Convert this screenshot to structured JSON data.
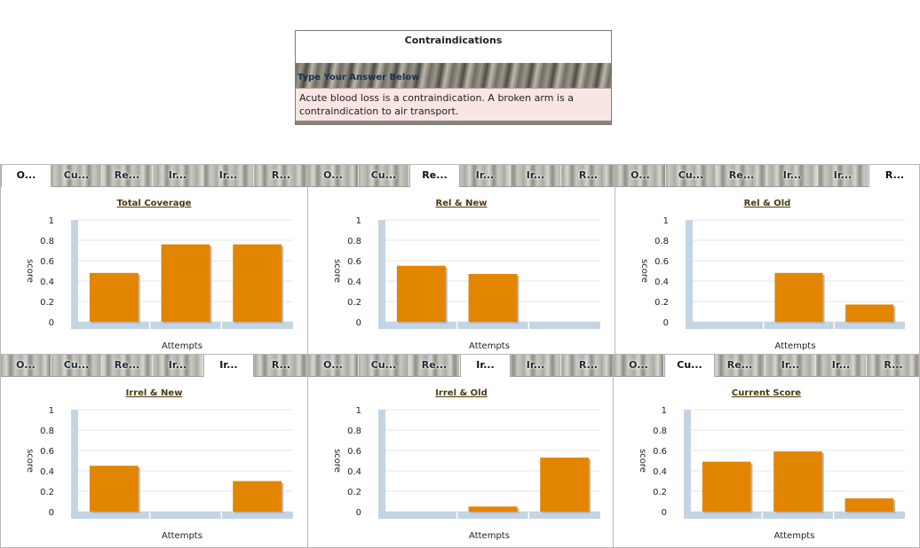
{
  "question": {
    "title": "Contraindications",
    "prompt": "Type Your Answer Below",
    "answer": "Acute blood loss is a contraindication. A broken arm is a contraindication to air transport."
  },
  "tab_labels": [
    "O...",
    "Cu...",
    "Re...",
    "Ir...",
    "Ir...",
    "R..."
  ],
  "colors": {
    "bar": "#e28500",
    "axis": "#c4d4e3",
    "grid": "#e6e6e6"
  },
  "panels": [
    {
      "active_tab": 0,
      "title": "Total Coverage"
    },
    {
      "active_tab": 2,
      "title": "Rel & New"
    },
    {
      "active_tab": 5,
      "title": "Rel & Old"
    },
    {
      "active_tab": 4,
      "title": "Irrel & New"
    },
    {
      "active_tab": 3,
      "title": "Irrel & Old"
    },
    {
      "active_tab": 1,
      "title": "Current Score"
    }
  ],
  "chart_data": [
    {
      "type": "bar",
      "title": "Total Coverage",
      "xlabel": "Attempts",
      "ylabel": "score",
      "ylim": [
        0,
        1
      ],
      "yticks": [
        "0",
        "0.2",
        "0.4",
        "0.6",
        "0.8",
        "1"
      ],
      "values": [
        0.48,
        0.76,
        0.76
      ]
    },
    {
      "type": "bar",
      "title": "Rel & New",
      "xlabel": "Attempts",
      "ylabel": "score",
      "ylim": [
        0,
        1
      ],
      "yticks": [
        "0",
        "0.2",
        "0.4",
        "0.6",
        "0.8",
        "1"
      ],
      "values": [
        0.55,
        0.47,
        0
      ]
    },
    {
      "type": "bar",
      "title": "Rel & Old",
      "xlabel": "Attempts",
      "ylabel": "score",
      "ylim": [
        0,
        1
      ],
      "yticks": [
        "0",
        "0.2",
        "0.4",
        "0.6",
        "0.8",
        "1"
      ],
      "values": [
        0,
        0.48,
        0.17
      ]
    },
    {
      "type": "bar",
      "title": "Irrel & New",
      "xlabel": "Attempts",
      "ylabel": "score",
      "ylim": [
        0,
        1
      ],
      "yticks": [
        "0",
        "0.2",
        "0.4",
        "0.6",
        "0.8",
        "1"
      ],
      "values": [
        0.45,
        0,
        0.3
      ]
    },
    {
      "type": "bar",
      "title": "Irrel & Old",
      "xlabel": "Attempts",
      "ylabel": "score",
      "ylim": [
        0,
        1
      ],
      "yticks": [
        "0",
        "0.2",
        "0.4",
        "0.6",
        "0.8",
        "1"
      ],
      "values": [
        0,
        0.05,
        0.53
      ]
    },
    {
      "type": "bar",
      "title": "Current Score",
      "xlabel": "Attempts",
      "ylabel": "score",
      "ylim": [
        0,
        1
      ],
      "yticks": [
        "0",
        "0.2",
        "0.4",
        "0.6",
        "0.8",
        "1"
      ],
      "values": [
        0.49,
        0.59,
        0.13
      ]
    }
  ]
}
